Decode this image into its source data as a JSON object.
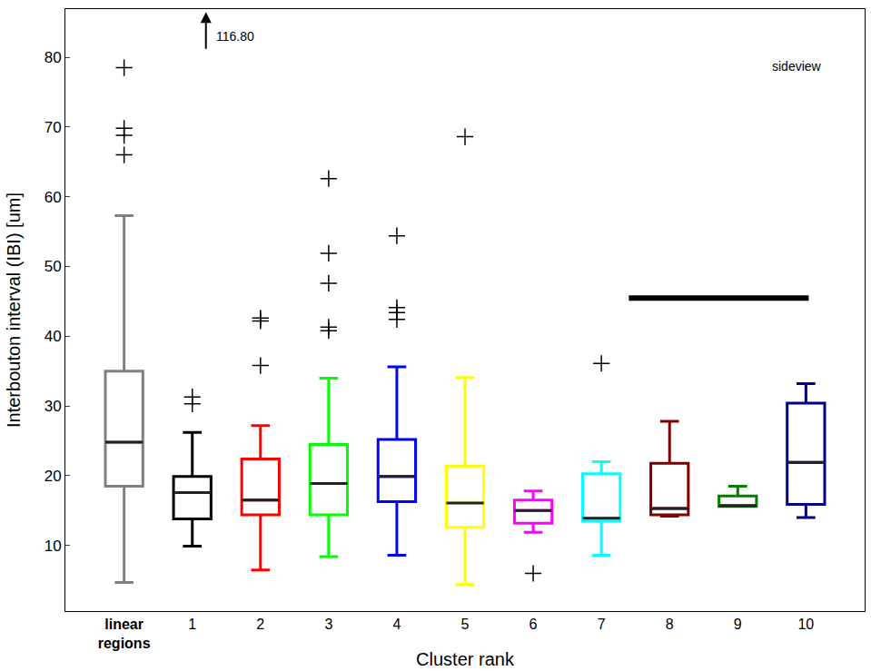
{
  "chart_data": {
    "type": "box",
    "x_label": "Cluster rank",
    "y_label": "Interbouton interval (IBI) [um]",
    "categories": [
      "linear regions",
      "1",
      "2",
      "3",
      "4",
      "5",
      "6",
      "7",
      "8",
      "9",
      "10"
    ],
    "boxes": [
      {
        "color": "#808080",
        "lower_whisker": 4.7,
        "q1": 18.5,
        "median": 24.8,
        "q3": 35.0,
        "upper_whisker": 57.3,
        "outliers": [
          66.0,
          68.8,
          69.8,
          78.5
        ]
      },
      {
        "color": "#000000",
        "lower_whisker": 9.9,
        "q1": 13.8,
        "median": 17.6,
        "q3": 19.9,
        "upper_whisker": 26.2,
        "outliers": [
          30.3,
          31.3,
          116.8
        ]
      },
      {
        "color": "#ff0000",
        "lower_whisker": 6.5,
        "q1": 14.4,
        "median": 16.5,
        "q3": 22.4,
        "upper_whisker": 27.2,
        "outliers": [
          35.8,
          42.2,
          42.6
        ]
      },
      {
        "color": "#00ff00",
        "lower_whisker": 8.4,
        "q1": 14.4,
        "median": 18.9,
        "q3": 24.5,
        "upper_whisker": 34.0,
        "outliers": [
          40.8,
          41.3,
          47.6,
          51.9,
          62.6
        ]
      },
      {
        "color": "#0000ff",
        "lower_whisker": 8.6,
        "q1": 16.3,
        "median": 19.9,
        "q3": 25.2,
        "upper_whisker": 35.6,
        "outliers": [
          42.4,
          43.4,
          44.1,
          54.4
        ]
      },
      {
        "color": "#ffff00",
        "lower_whisker": 4.4,
        "q1": 12.6,
        "median": 16.1,
        "q3": 21.4,
        "upper_whisker": 34.1,
        "outliers": [
          68.6
        ]
      },
      {
        "color": "#ff00ff",
        "lower_whisker": 11.9,
        "q1": 13.2,
        "median": 15.0,
        "q3": 16.5,
        "upper_whisker": 17.8,
        "outliers": [
          6.0
        ]
      },
      {
        "color": "#00ffff",
        "lower_whisker": 8.6,
        "q1": 13.5,
        "median": 13.9,
        "q3": 20.3,
        "upper_whisker": 22.0,
        "outliers": [
          36.1
        ]
      },
      {
        "color": "#800000",
        "lower_whisker": 14.2,
        "q1": 14.4,
        "median": 15.3,
        "q3": 21.8,
        "upper_whisker": 27.8,
        "outliers": []
      },
      {
        "color": "#008000",
        "lower_whisker": 15.6,
        "q1": 15.6,
        "median": 15.7,
        "q3": 17.1,
        "upper_whisker": 18.5,
        "outliers": []
      },
      {
        "color": "#000080",
        "lower_whisker": 14.0,
        "q1": 15.9,
        "median": 21.9,
        "q3": 30.4,
        "upper_whisker": 33.2,
        "outliers": []
      }
    ],
    "annotation": {
      "text": "116.80",
      "category": "1"
    },
    "inset_label": "sideview",
    "marker": "cross",
    "ylim": [
      0.6,
      86.9
    ],
    "yticks": [
      10,
      20,
      30,
      40,
      50,
      60,
      70,
      80
    ],
    "grid": false
  }
}
